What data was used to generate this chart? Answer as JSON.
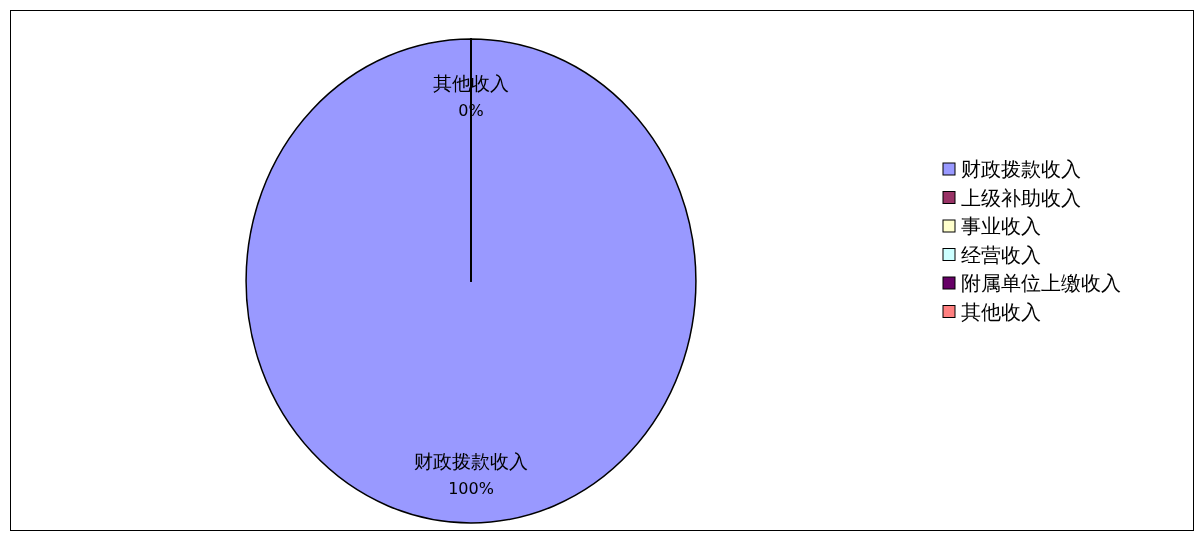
{
  "chart_data": {
    "type": "pie",
    "categories": [
      "财政拨款收入",
      "上级补助收入",
      "事业收入",
      "经营收入",
      "附属单位上缴收入",
      "其他收入"
    ],
    "values": [
      100,
      0,
      0,
      0,
      0,
      0
    ],
    "colors": [
      "#9999ff",
      "#993366",
      "#ffffcc",
      "#ccffff",
      "#660066",
      "#ff8080"
    ],
    "value_labels": [
      "100%",
      null,
      null,
      null,
      null,
      "0%"
    ],
    "legend": "right"
  }
}
